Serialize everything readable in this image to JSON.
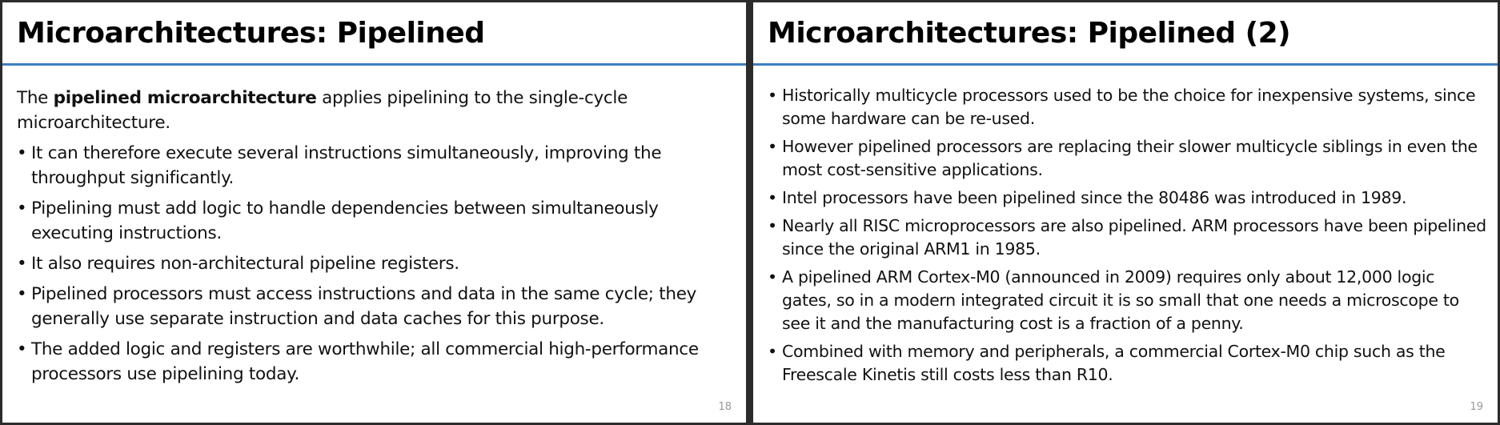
{
  "slides": [
    {
      "title": "Microarchitectures: Pipelined",
      "intro": [
        "The ",
        "pipelined microarchitecture",
        " applies pipelining to the single-cycle microarchitecture."
      ],
      "bullets": [
        "It can therefore execute several instructions simultaneously, improving the throughput significantly.",
        "Pipelining must add logic to handle dependencies between simultaneously executing instructions.",
        "It also requires non-architectural pipeline registers.",
        "Pipelined processors must access instructions and data in the same cycle; they generally use separate instruction and data caches for this purpose.",
        "The added logic and registers are worthwhile; all commercial high-performance processors use pipelining today."
      ],
      "page_number": "18"
    },
    {
      "title": "Microarchitectures: Pipelined (2)",
      "bullets": [
        "Historically multicycle processors used to be the choice for inexpensive systems, since some hardware can be re-used.",
        "However pipelined processors are replacing their slower multicycle siblings in even the most cost-sensitive applications.",
        "Intel processors have been pipelined since the 80486 was introduced in 1989.",
        "Nearly all RISC microprocessors are also pipelined. ARM processors have been pipelined since the original ARM1 in 1985.",
        "A pipelined ARM Cortex-M0 (announced in 2009) requires only about 12,000 logic gates, so in a modern integrated circuit it is so small that one needs a microscope to see it and the manufacturing cost is a fraction of a penny.",
        "Combined with memory and peripherals, a commercial Cortex-M0 chip such as the Freescale Kinetis still costs less than R10."
      ],
      "page_number": "19"
    }
  ]
}
